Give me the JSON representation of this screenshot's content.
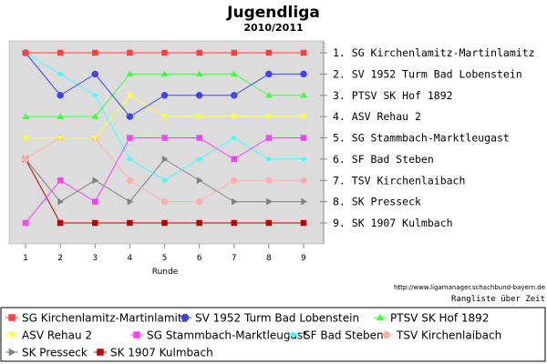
{
  "chart_data": {
    "type": "line",
    "title": "Jugendliga",
    "subtitle": "2010/2011",
    "xlabel": "Runde",
    "ylabel": "",
    "x": [
      1,
      2,
      3,
      4,
      5,
      6,
      7,
      8,
      9
    ],
    "y_axis": {
      "inverted": true,
      "range": [
        1,
        9
      ],
      "tick_step": 1,
      "labels": "right"
    },
    "grid": false,
    "legend_position": "bottom",
    "background_color": "#dcdcdc",
    "right_labels": [
      "1. SG Kirchenlamitz-Martinlamitz",
      "2. SV 1952 Turm Bad Lobenstein",
      "3. PTSV SK Hof 1892",
      "4. ASV Rehau 2",
      "5. SG Stammbach-Marktleugast",
      "6. SF Bad Steben",
      "7. TSV Kirchenlaibach",
      "8. SK Presseck",
      "9. SK 1907 Kulmbach"
    ],
    "series": [
      {
        "name": "SG Kirchenlamitz-Martinlamitz",
        "color": "#ff4040",
        "marker": "square",
        "values": [
          1,
          1,
          1,
          1,
          1,
          1,
          1,
          1,
          1
        ]
      },
      {
        "name": "SV 1952 Turm Bad Lobenstein",
        "color": "#4040ff",
        "marker": "circle",
        "values": [
          1,
          3,
          2,
          4,
          3,
          3,
          3,
          2,
          2
        ]
      },
      {
        "name": "PTSV SK Hof 1892",
        "color": "#40ff40",
        "marker": "triangle",
        "values": [
          4,
          4,
          4,
          2,
          2,
          2,
          2,
          3,
          3
        ]
      },
      {
        "name": "ASV Rehau 2",
        "color": "#ffff40",
        "marker": "triangle-down",
        "values": [
          5,
          5,
          5,
          3,
          4,
          4,
          4,
          4,
          4
        ]
      },
      {
        "name": "SG Stammbach-Marktleugast",
        "color": "#ff40ff",
        "marker": "square",
        "values": [
          9,
          7,
          8,
          5,
          5,
          5,
          6,
          5,
          5
        ]
      },
      {
        "name": "SF Bad Steben",
        "color": "#40ffff",
        "marker": "diamond-h",
        "values": [
          1,
          2,
          3,
          6,
          7,
          6,
          5,
          6,
          6
        ]
      },
      {
        "name": "TSV Kirchenlaibach",
        "color": "#ffafaf",
        "marker": "circle",
        "values": [
          6,
          5,
          5,
          7,
          8,
          8,
          7,
          7,
          7
        ]
      },
      {
        "name": "SK Presseck",
        "color": "#808080",
        "marker": "triangle-right",
        "values": [
          6,
          8,
          7,
          8,
          6,
          7,
          8,
          8,
          8
        ]
      },
      {
        "name": "SK 1907 Kulmbach",
        "color": "#c00000",
        "marker": "square",
        "values": [
          6,
          9,
          9,
          9,
          9,
          9,
          9,
          9,
          9
        ]
      }
    ],
    "footer": {
      "url": "http://www.ligamanager.schachbund-bayern.de",
      "caption": "Rangliste über Zeit"
    }
  }
}
